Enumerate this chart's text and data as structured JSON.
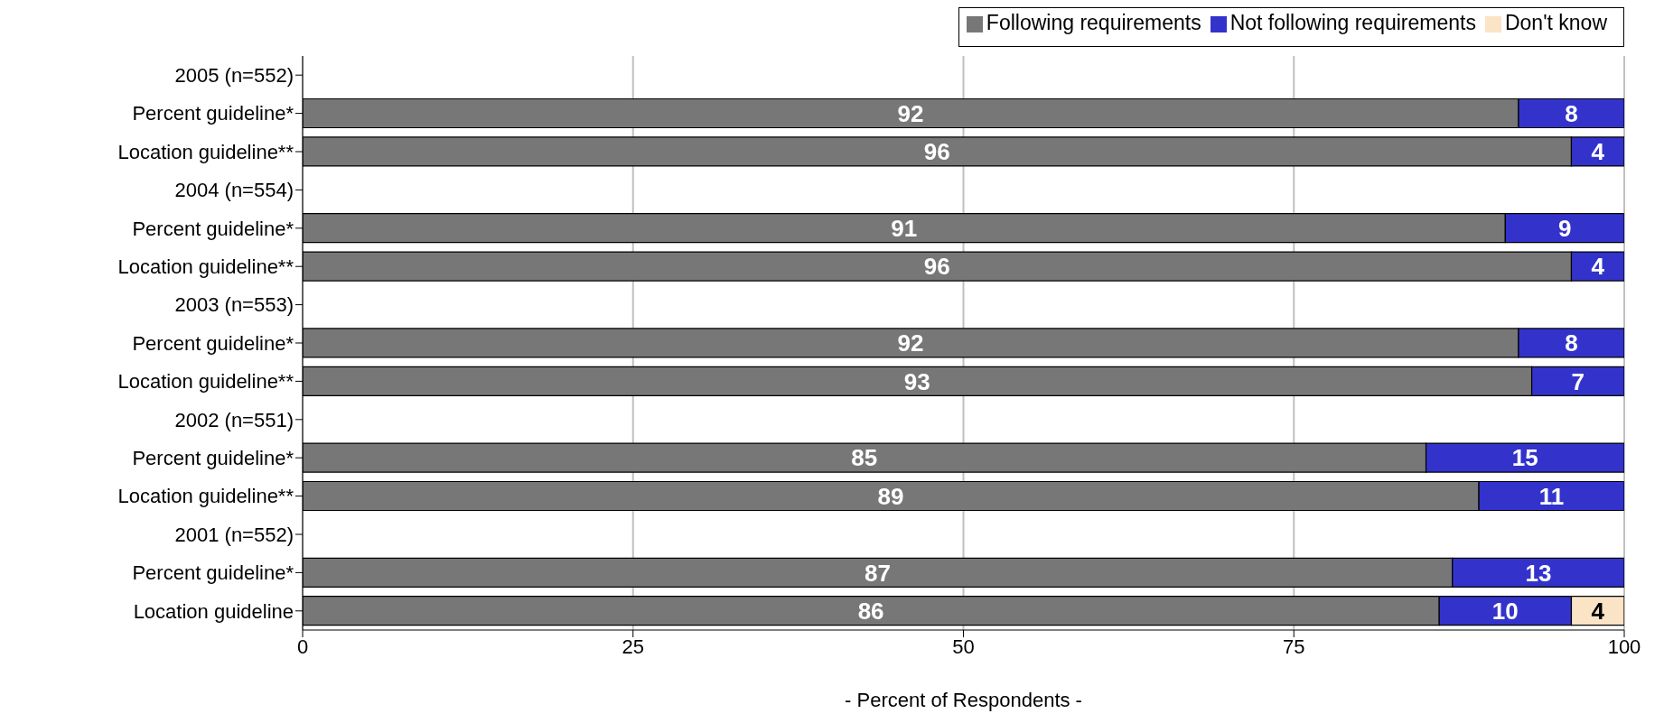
{
  "chart_data": {
    "type": "bar",
    "orientation": "horizontal",
    "stacked": true,
    "xlabel": "- Percent of Respondents -",
    "categories": [
      "2005 (n=552)",
      "Percent guideline*",
      "Location guideline**",
      "2004 (n=554)",
      "Percent guideline*",
      "Location guideline**",
      "2003 (n=553)",
      "Percent guideline*",
      "Location guideline**",
      "2002 (n=551)",
      "Percent guideline*",
      "Location guideline**",
      "2001 (n=552)",
      "Percent guideline*",
      "Location guideline"
    ],
    "series": [
      {
        "name": "Following requirements",
        "color": "#777777",
        "values": [
          null,
          92,
          96,
          null,
          91,
          96,
          null,
          92,
          93,
          null,
          85,
          89,
          null,
          87,
          86
        ]
      },
      {
        "name": "Not following requirements",
        "color": "#3333cc",
        "values": [
          null,
          8,
          4,
          null,
          9,
          4,
          null,
          8,
          7,
          null,
          15,
          11,
          null,
          13,
          10
        ]
      },
      {
        "name": "Don't know",
        "color": "#fbe3c6",
        "values": [
          null,
          null,
          null,
          null,
          null,
          null,
          null,
          null,
          null,
          null,
          null,
          null,
          null,
          null,
          4
        ]
      }
    ],
    "xlim": [
      0,
      100
    ],
    "xticks": [
      0,
      25,
      50,
      75,
      100
    ],
    "grid": "x",
    "legend": "top right",
    "data_labels": true
  }
}
